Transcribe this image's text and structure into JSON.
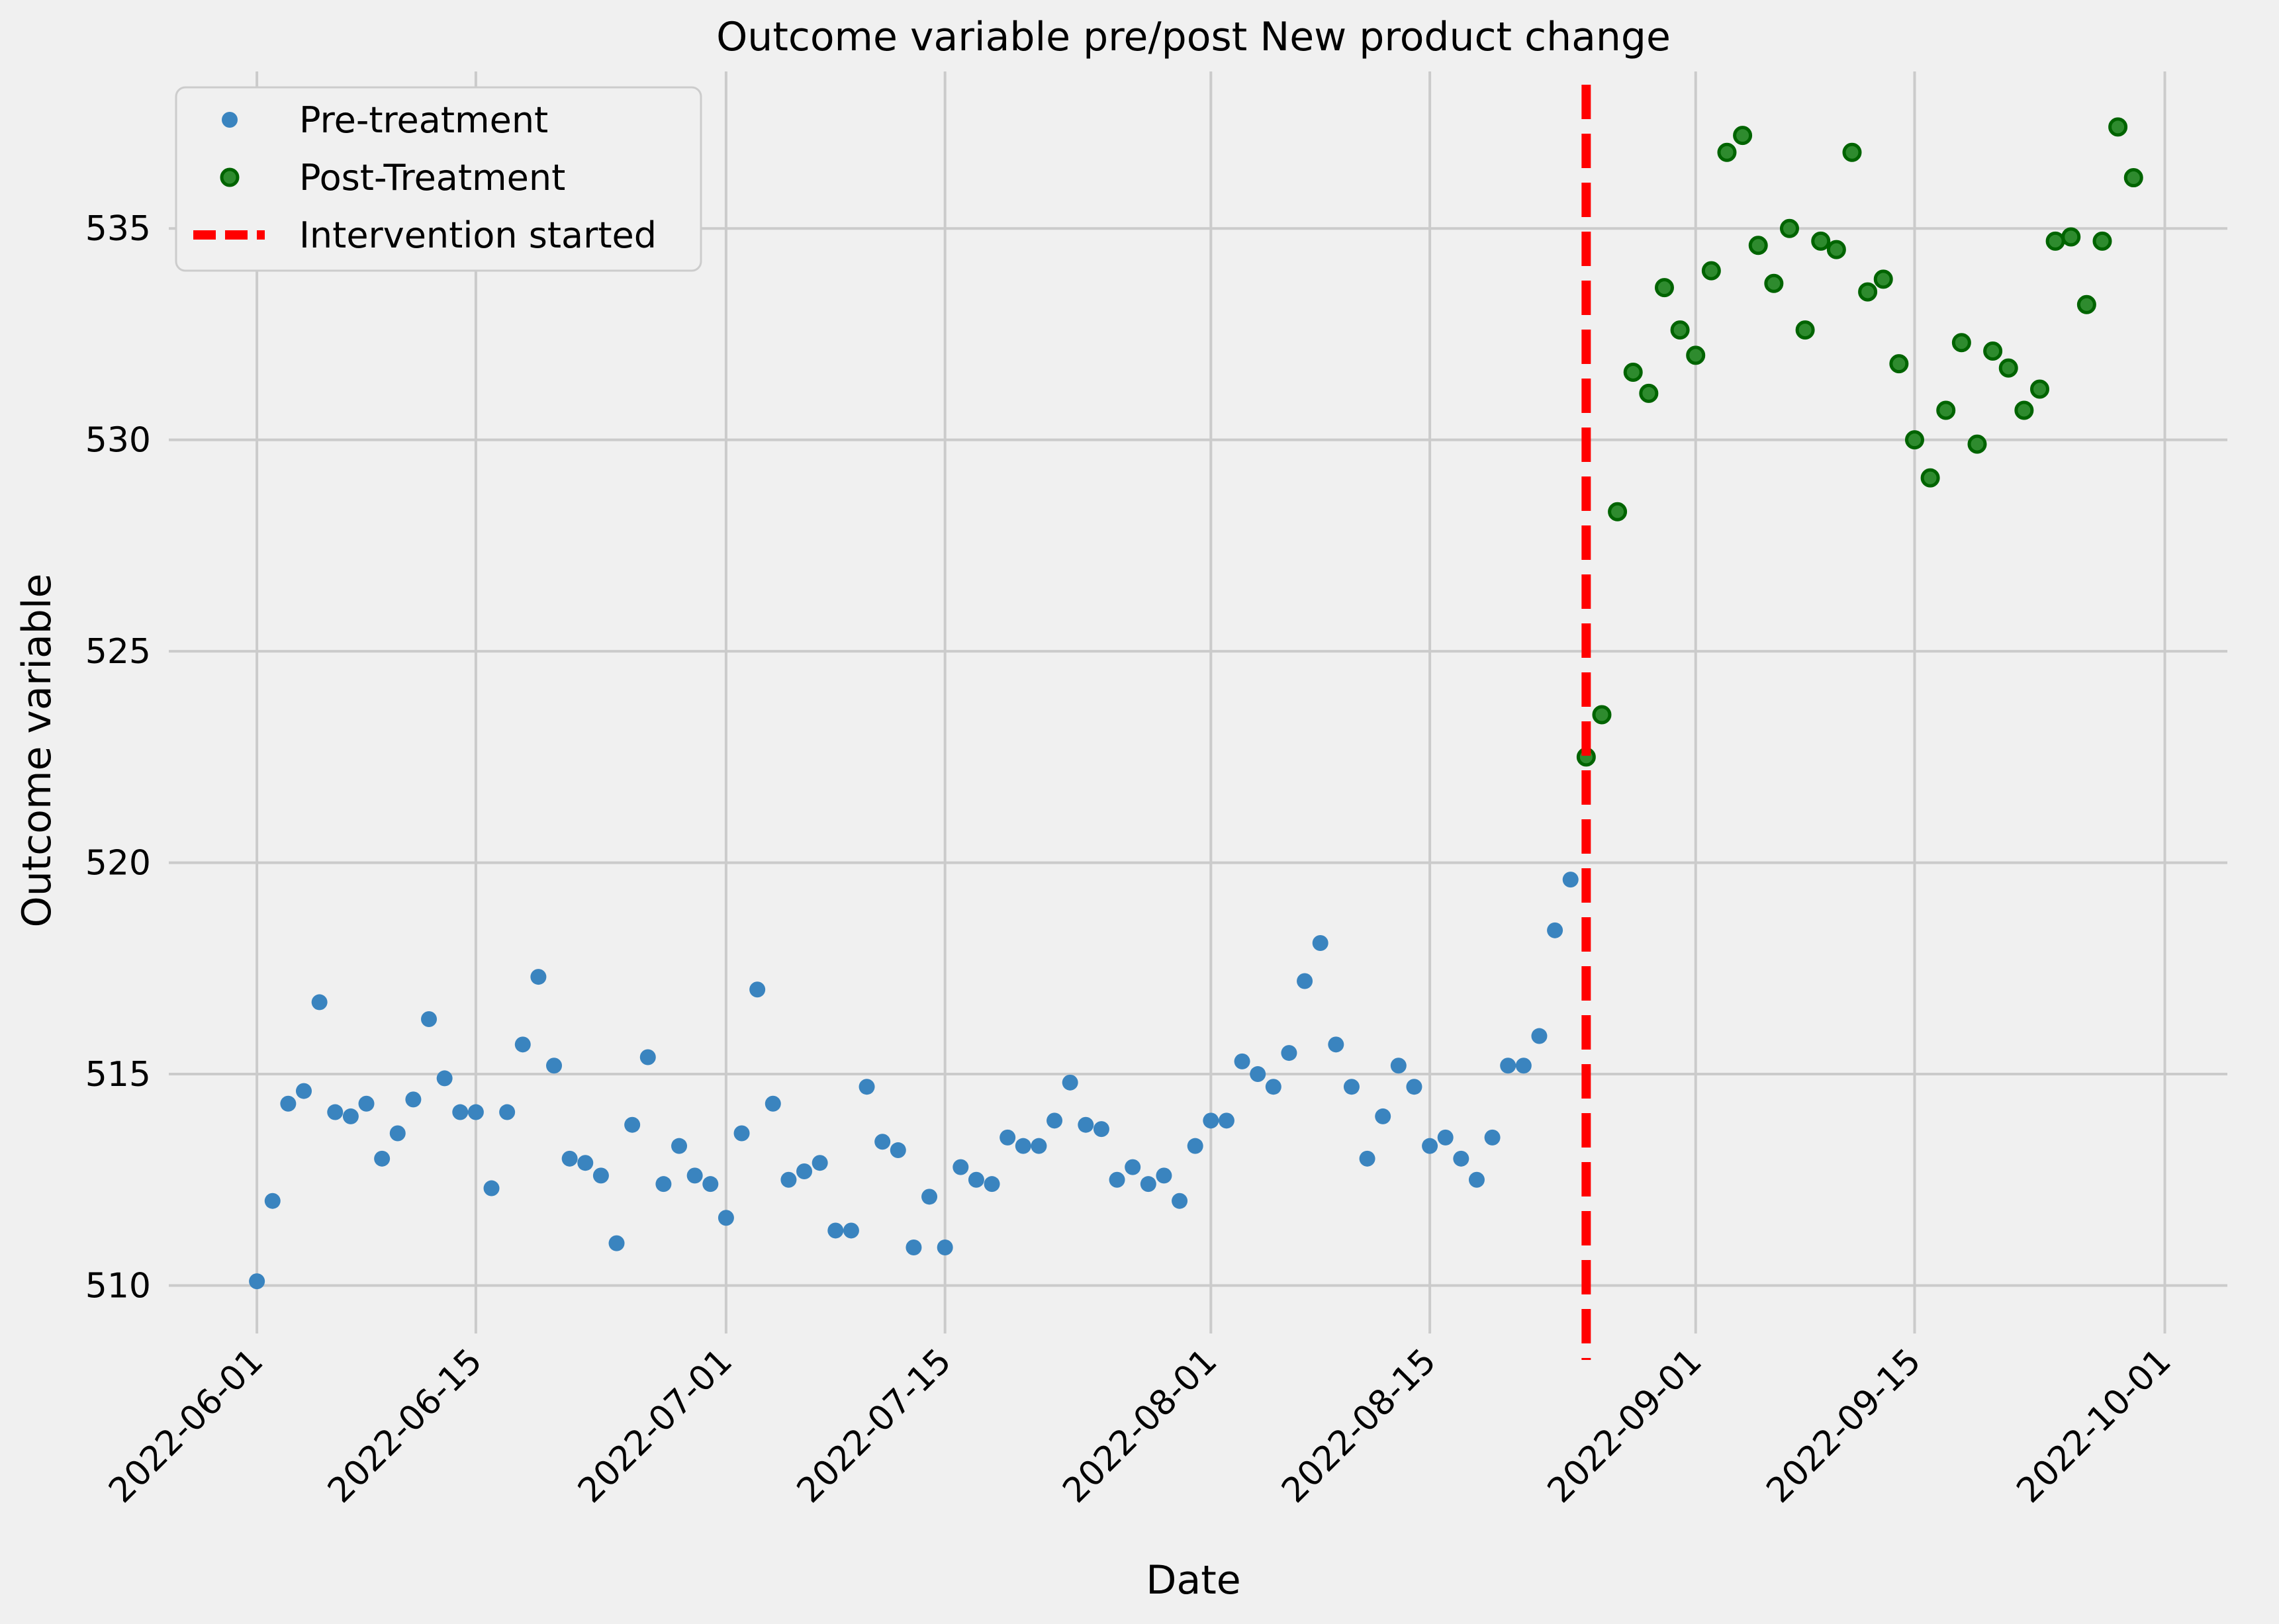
{
  "chart_data": {
    "type": "scatter",
    "title": "Outcome variable pre/post New product change",
    "xlabel": "Date",
    "ylabel": "Outcome variable",
    "x_ticks": [
      "2022-06-01",
      "2022-06-15",
      "2022-07-01",
      "2022-07-15",
      "2022-08-01",
      "2022-08-15",
      "2022-09-01",
      "2022-09-15",
      "2022-10-01"
    ],
    "y_ticks": [
      510,
      515,
      520,
      525,
      530,
      535
    ],
    "xlim": [
      "2022-05-27",
      "2022-10-05"
    ],
    "ylim": [
      509.1,
      538.4
    ],
    "grid": true,
    "legend_position": "top-left",
    "legend": [
      "Pre-treatment",
      "Post-Treatment",
      "Intervention started"
    ],
    "intervention_date": "2022-08-25",
    "colors": {
      "pre": "#3a84bf",
      "post_fill": "#2e8b2e",
      "post_edge": "#006400",
      "intervention": "#ff0000",
      "background": "#f0f0f0",
      "grid": "#cbcbcb"
    },
    "series": [
      {
        "name": "Pre-treatment",
        "start_date": "2022-06-01",
        "values": [
          510.1,
          512.0,
          514.3,
          514.6,
          516.7,
          514.1,
          514.0,
          514.3,
          513.0,
          513.6,
          514.4,
          516.3,
          514.9,
          514.1,
          514.1,
          512.3,
          514.1,
          515.7,
          517.3,
          515.2,
          513.0,
          512.9,
          512.6,
          511.0,
          513.8,
          515.4,
          512.4,
          513.3,
          512.6,
          512.4,
          511.6,
          513.6,
          517.0,
          514.3,
          512.5,
          512.7,
          512.9,
          511.3,
          511.3,
          514.7,
          513.4,
          513.2,
          510.9,
          512.1,
          510.9,
          512.8,
          512.5,
          512.4,
          513.5,
          513.3,
          513.3,
          513.9,
          514.8,
          513.8,
          513.7,
          512.5,
          512.8,
          512.4,
          512.6,
          512.0,
          513.3,
          513.9,
          513.9,
          515.3,
          515.0,
          514.7,
          515.5,
          517.2,
          518.1,
          515.7,
          514.7,
          513.0,
          514.0,
          515.2,
          514.7,
          513.3,
          513.5,
          513.0,
          512.5,
          513.5,
          515.2,
          515.2,
          515.9,
          518.4,
          519.6
        ]
      },
      {
        "name": "Post-Treatment",
        "start_date": "2022-08-25",
        "values": [
          522.5,
          523.5,
          528.3,
          531.6,
          531.1,
          533.6,
          532.6,
          532.0,
          534.0,
          536.8,
          537.2,
          534.6,
          533.7,
          535.0,
          532.6,
          534.7,
          534.5,
          536.8,
          533.5,
          533.8,
          531.8,
          530.0,
          529.1,
          530.7,
          532.3,
          529.9,
          532.1,
          531.7,
          530.7,
          531.2,
          534.7,
          534.8,
          533.2,
          534.7,
          537.4,
          536.2
        ]
      }
    ]
  }
}
